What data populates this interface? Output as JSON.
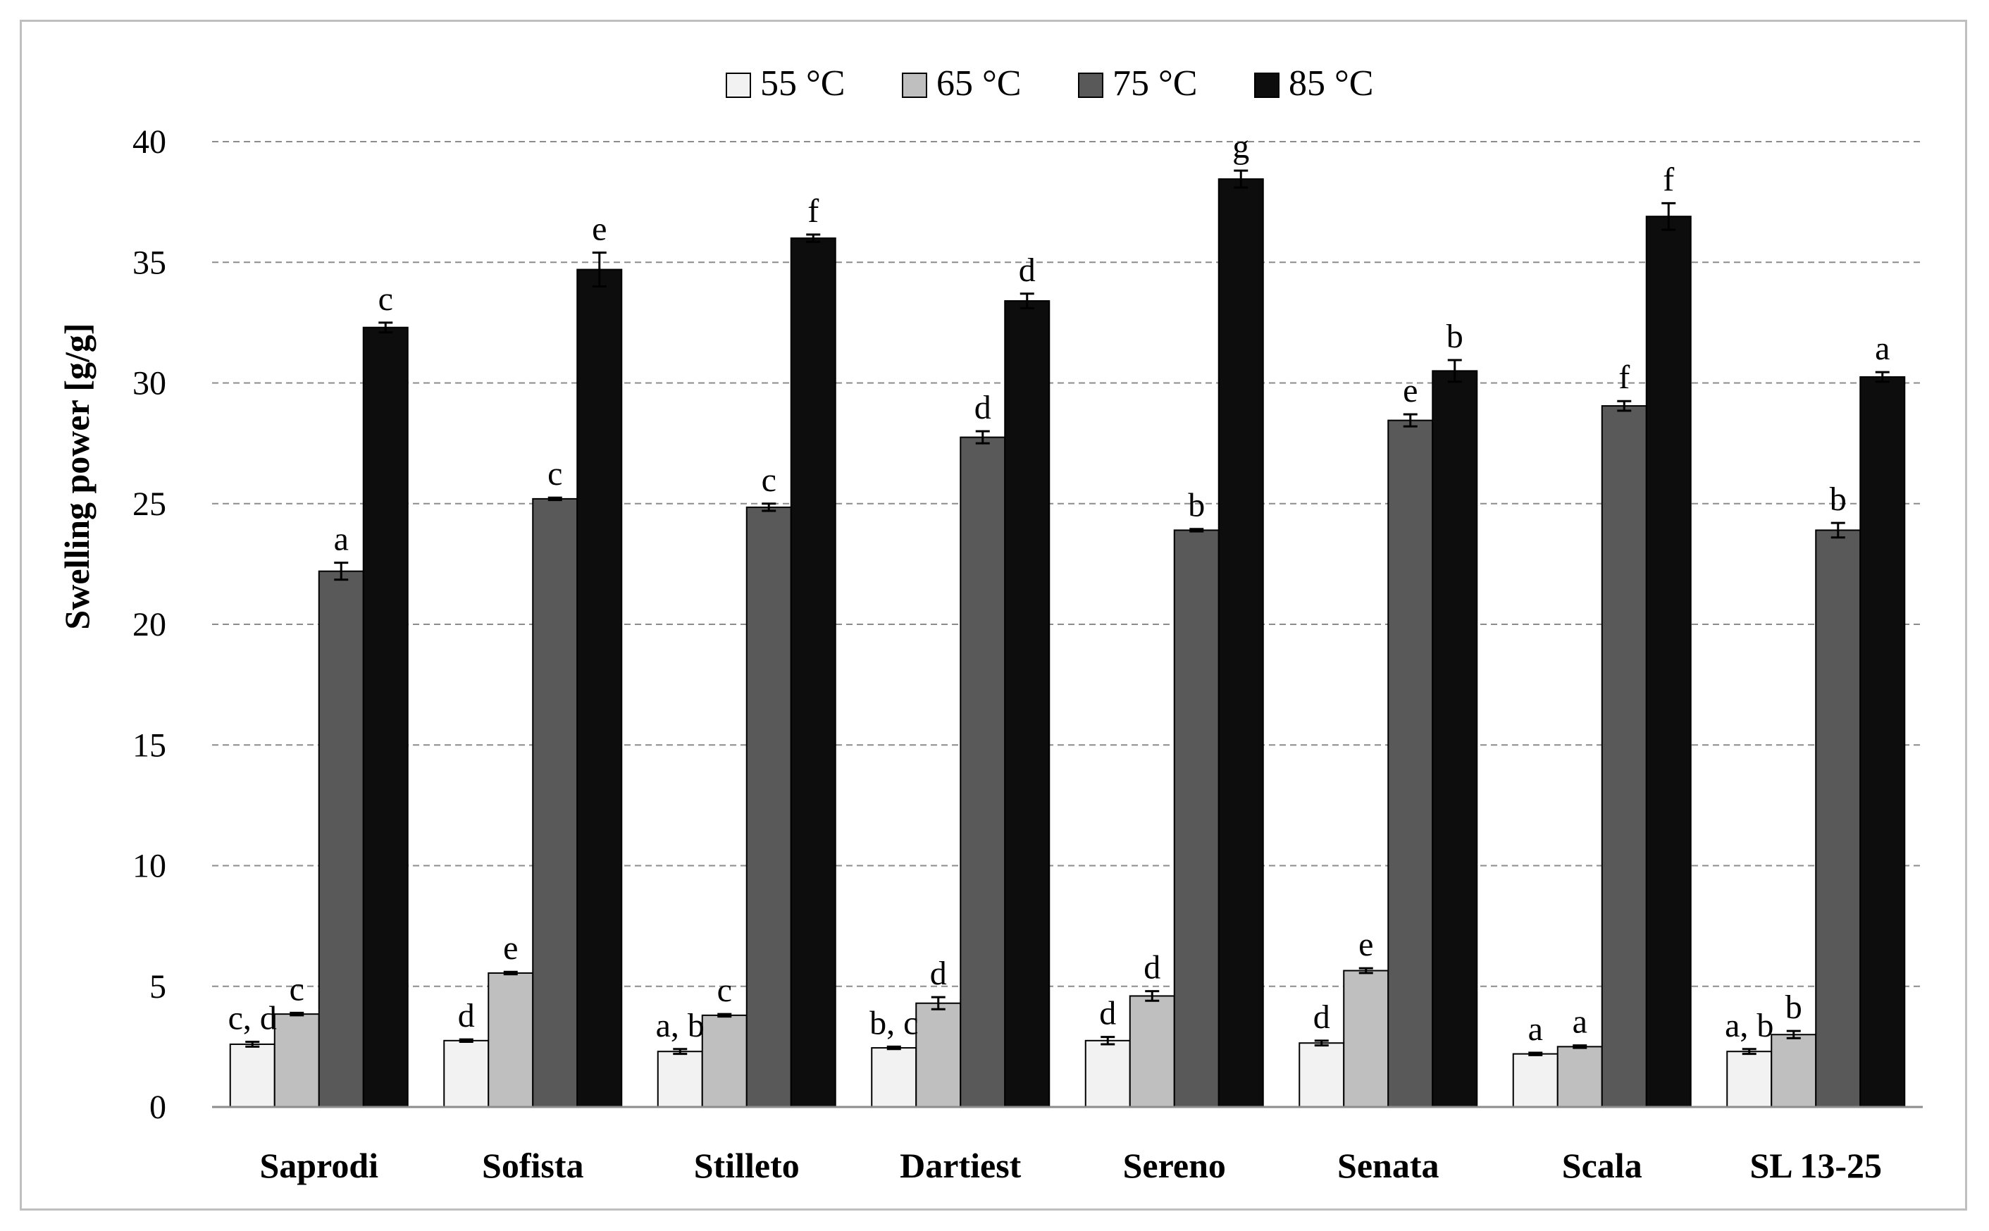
{
  "chart_data": {
    "type": "bar",
    "title": "",
    "xlabel": "",
    "ylabel": "Swelling power [g/g]",
    "ylim": [
      0,
      40
    ],
    "yticks": [
      0,
      5,
      10,
      15,
      20,
      25,
      30,
      35,
      40
    ],
    "grid": "horizontal-dashed",
    "legend_position": "top-center",
    "categories": [
      "Saprodi",
      "Sofista",
      "Stilleto",
      "Dartiest",
      "Sereno",
      "Senata",
      "Scala",
      "SL 13-25"
    ],
    "series": [
      {
        "name": "55 °C",
        "color": "#f2f2f2",
        "values": [
          2.6,
          2.75,
          2.3,
          2.45,
          2.75,
          2.65,
          2.2,
          2.3
        ],
        "errors": [
          0.1,
          0.05,
          0.1,
          0.05,
          0.15,
          0.1,
          0.05,
          0.1
        ],
        "sig": [
          "c, d",
          "d",
          "a, b",
          "b, c",
          "d",
          "d",
          "a",
          "a, b"
        ]
      },
      {
        "name": "65 °C",
        "color": "#bfbfbf",
        "values": [
          3.85,
          5.55,
          3.8,
          4.3,
          4.6,
          5.65,
          2.5,
          3.0
        ],
        "errors": [
          0.05,
          0.05,
          0.05,
          0.25,
          0.2,
          0.1,
          0.05,
          0.15
        ],
        "sig": [
          "c",
          "e",
          "c",
          "d",
          "d",
          "e",
          "a",
          "b"
        ]
      },
      {
        "name": "75 °C",
        "color": "#595959",
        "values": [
          22.2,
          25.2,
          24.85,
          27.75,
          23.9,
          28.45,
          29.05,
          23.9
        ],
        "errors": [
          0.35,
          0.05,
          0.15,
          0.25,
          0.05,
          0.25,
          0.2,
          0.3
        ],
        "sig": [
          "a",
          "c",
          "c",
          "d",
          "b",
          "e",
          "f",
          "b"
        ]
      },
      {
        "name": "85 °C",
        "color": "#0d0d0d",
        "values": [
          32.3,
          34.7,
          36.0,
          33.4,
          38.45,
          30.5,
          36.9,
          30.25
        ],
        "errors": [
          0.2,
          0.7,
          0.15,
          0.3,
          0.35,
          0.45,
          0.55,
          0.2
        ],
        "sig": [
          "c",
          "e",
          "f",
          "d",
          "g",
          "b",
          "f",
          "a"
        ]
      }
    ]
  }
}
